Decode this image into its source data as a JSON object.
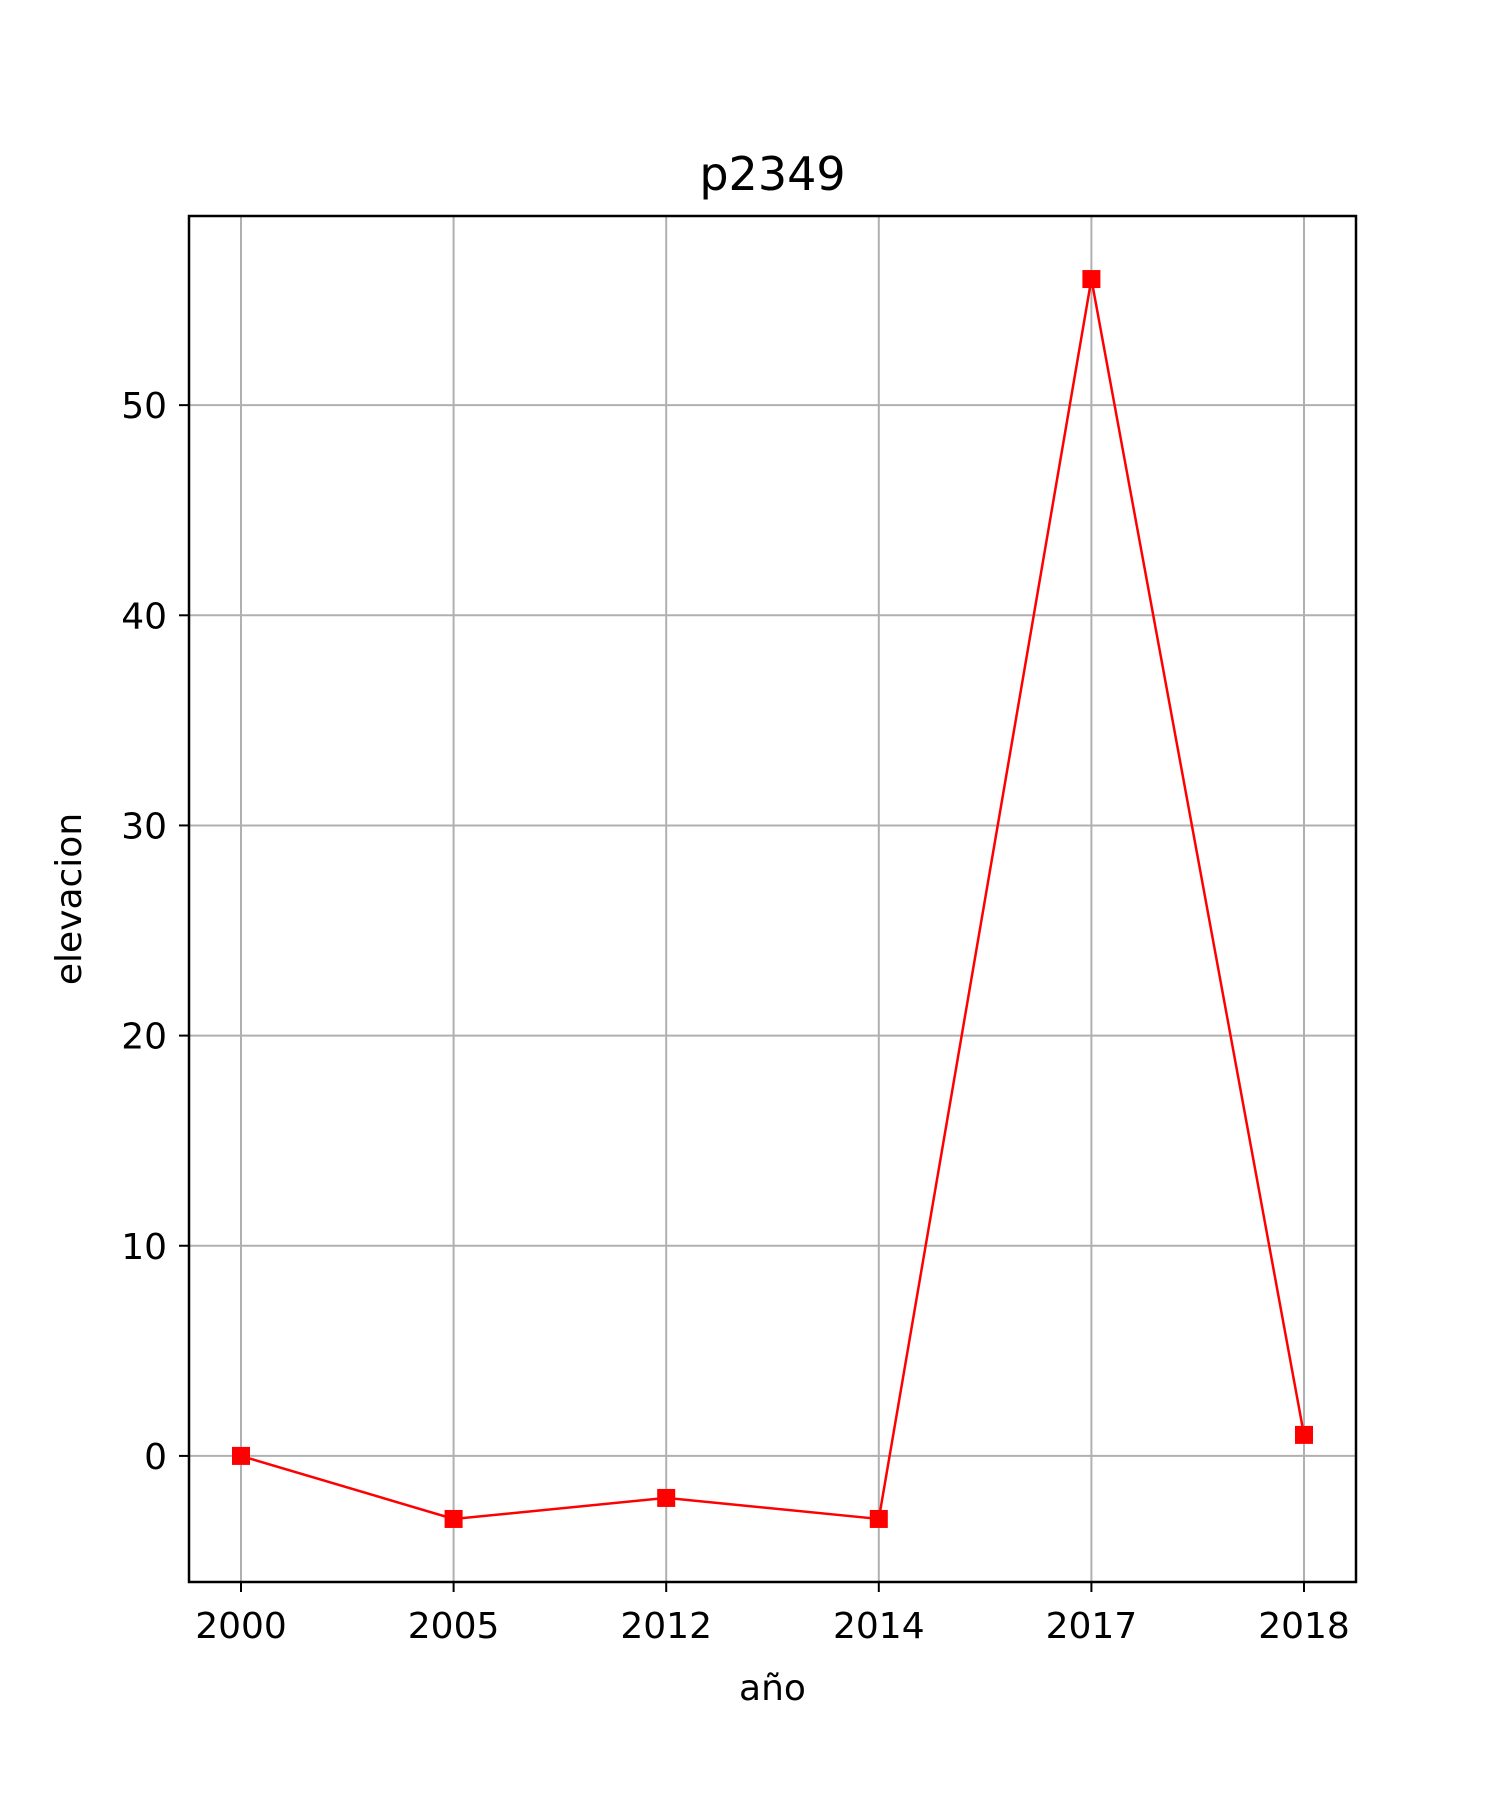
{
  "chart_data": {
    "type": "line",
    "title": "p2349",
    "xlabel": "año",
    "ylabel": "elevacion",
    "categories": [
      "2000",
      "2005",
      "2012",
      "2014",
      "2017",
      "2018"
    ],
    "series": [
      {
        "values": [
          0,
          -3,
          -2,
          -3,
          56,
          1
        ],
        "color": "#ff0000",
        "marker": "square"
      }
    ],
    "y_ticks": [
      0,
      10,
      20,
      30,
      40,
      50
    ],
    "ylim": [
      -6,
      59
    ],
    "grid": true
  }
}
